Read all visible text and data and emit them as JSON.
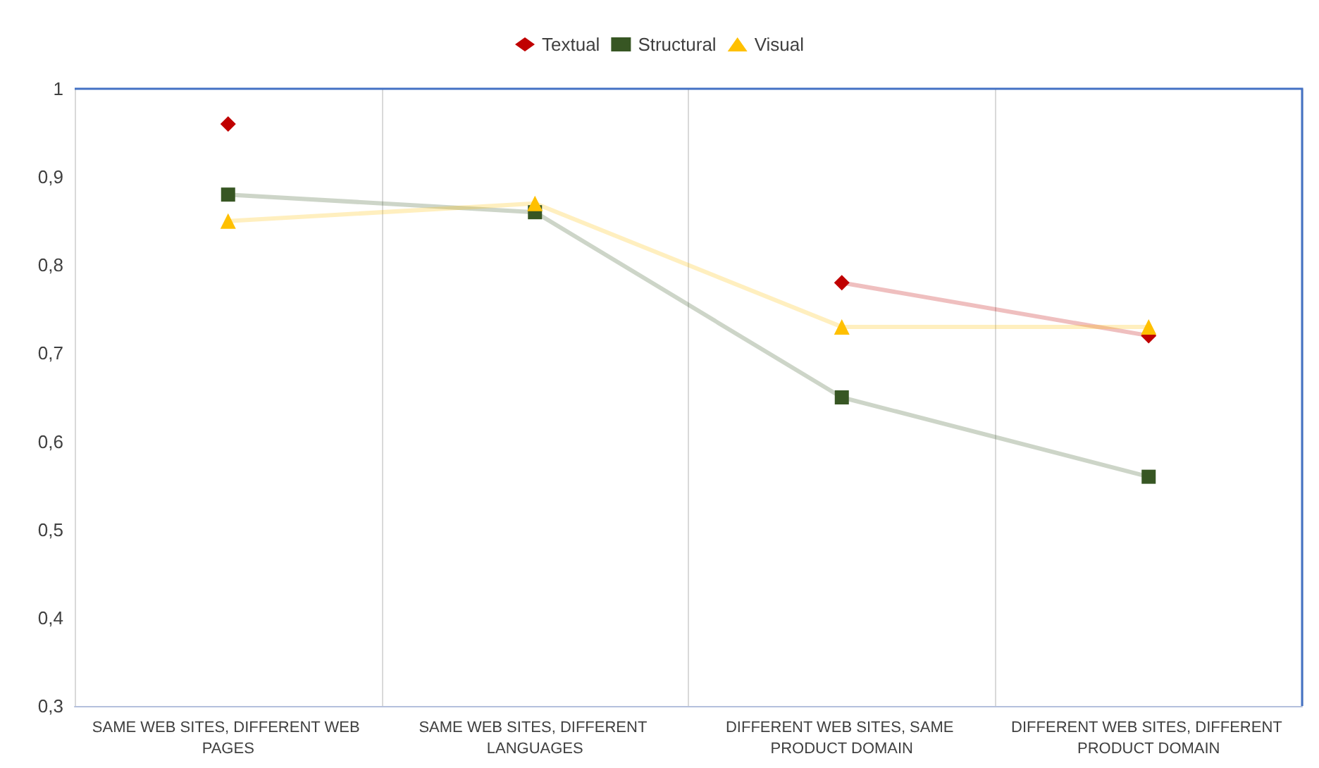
{
  "chart_data": {
    "type": "line",
    "categories": [
      "SAME WEB SITES, DIFFERENT WEB PAGES",
      "SAME WEB SITES, DIFFERENT LANGUAGES",
      "DIFFERENT WEB SITES, SAME PRODUCT DOMAIN",
      "DIFFERENT WEB SITES, DIFFERENT PRODUCT DOMAIN"
    ],
    "series": [
      {
        "name": "Textual",
        "color": "#c00000",
        "marker": "diamond",
        "values": [
          0.96,
          null,
          0.78,
          0.72
        ]
      },
      {
        "name": "Structural",
        "color": "#375623",
        "marker": "square",
        "values": [
          0.88,
          0.86,
          0.65,
          0.56
        ]
      },
      {
        "name": "Visual",
        "color": "#ffc000",
        "marker": "triangle",
        "values": [
          0.85,
          0.87,
          0.73,
          0.73
        ]
      }
    ],
    "ylim": [
      0.3,
      1
    ],
    "yticks": [
      {
        "value": 0.3,
        "label": "0,3"
      },
      {
        "value": 0.4,
        "label": "0,4"
      },
      {
        "value": 0.5,
        "label": "0,5"
      },
      {
        "value": 0.6,
        "label": "0,6"
      },
      {
        "value": 0.7,
        "label": "0,7"
      },
      {
        "value": 0.8,
        "label": "0,8"
      },
      {
        "value": 0.9,
        "label": "0,9"
      },
      1
    ],
    "grid": "x",
    "legend": "top",
    "line_style": "solid"
  }
}
